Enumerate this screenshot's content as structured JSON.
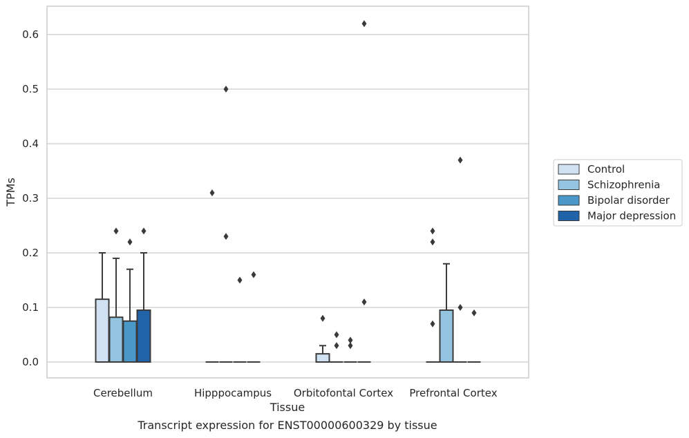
{
  "caption": "Transcript expression for ENST00000600329 by tissue",
  "colors": {
    "grid": "#cccccc",
    "frame": "#cccccc",
    "edge": "#3a3a3a",
    "series": [
      "#d0e1f2",
      "#94c4df",
      "#4a98c9",
      "#2163a8"
    ]
  },
  "chart_data": {
    "type": "box",
    "title": "",
    "xlabel": "Tissue",
    "ylabel": "TPMs",
    "ylim": [
      -0.03,
      0.65
    ],
    "yticks": [
      0.0,
      0.1,
      0.2,
      0.3,
      0.4,
      0.5,
      0.6
    ],
    "ytick_labels": [
      "0.0",
      "0.1",
      "0.2",
      "0.3",
      "0.4",
      "0.5",
      "0.6"
    ],
    "grid": "horizontal",
    "legend_position": "right, outside plot",
    "categories": [
      "Cerebellum",
      "Hipppocampus",
      "Orbitofontal Cortex",
      "Prefrontal Cortex"
    ],
    "series": [
      {
        "name": "Control",
        "boxes": [
          {
            "q1": 0.0,
            "median": 0.0,
            "q3": 0.115,
            "whisker_low": 0.0,
            "whisker_high": 0.2,
            "outliers": []
          },
          {
            "q1": 0.0,
            "median": 0.0,
            "q3": 0.0,
            "whisker_low": 0.0,
            "whisker_high": 0.0,
            "outliers": [
              0.31
            ]
          },
          {
            "q1": 0.0,
            "median": 0.0,
            "q3": 0.015,
            "whisker_low": 0.0,
            "whisker_high": 0.03,
            "outliers": [
              0.08
            ]
          },
          {
            "q1": 0.0,
            "median": 0.0,
            "q3": 0.0,
            "whisker_low": 0.0,
            "whisker_high": 0.0,
            "outliers": [
              0.07,
              0.22,
              0.24
            ]
          }
        ]
      },
      {
        "name": "Schizophrenia",
        "boxes": [
          {
            "q1": 0.0,
            "median": 0.0,
            "q3": 0.082,
            "whisker_low": 0.0,
            "whisker_high": 0.19,
            "outliers": [
              0.24
            ]
          },
          {
            "q1": 0.0,
            "median": 0.0,
            "q3": 0.0,
            "whisker_low": 0.0,
            "whisker_high": 0.0,
            "outliers": [
              0.23,
              0.5
            ]
          },
          {
            "q1": 0.0,
            "median": 0.0,
            "q3": 0.0,
            "whisker_low": 0.0,
            "whisker_high": 0.0,
            "outliers": [
              0.03,
              0.05
            ]
          },
          {
            "q1": 0.0,
            "median": 0.0,
            "q3": 0.095,
            "whisker_low": 0.0,
            "whisker_high": 0.18,
            "outliers": []
          }
        ]
      },
      {
        "name": "Bipolar disorder",
        "boxes": [
          {
            "q1": 0.0,
            "median": 0.0,
            "q3": 0.075,
            "whisker_low": 0.0,
            "whisker_high": 0.17,
            "outliers": [
              0.22
            ]
          },
          {
            "q1": 0.0,
            "median": 0.0,
            "q3": 0.0,
            "whisker_low": 0.0,
            "whisker_high": 0.0,
            "outliers": [
              0.15
            ]
          },
          {
            "q1": 0.0,
            "median": 0.0,
            "q3": 0.0,
            "whisker_low": 0.0,
            "whisker_high": 0.0,
            "outliers": [
              0.03,
              0.04
            ]
          },
          {
            "q1": 0.0,
            "median": 0.0,
            "q3": 0.0,
            "whisker_low": 0.0,
            "whisker_high": 0.0,
            "outliers": [
              0.1,
              0.37
            ]
          }
        ]
      },
      {
        "name": "Major depression",
        "boxes": [
          {
            "q1": 0.0,
            "median": 0.0,
            "q3": 0.095,
            "whisker_low": 0.0,
            "whisker_high": 0.2,
            "outliers": [
              0.24
            ]
          },
          {
            "q1": 0.0,
            "median": 0.0,
            "q3": 0.0,
            "whisker_low": 0.0,
            "whisker_high": 0.0,
            "outliers": [
              0.16
            ]
          },
          {
            "q1": 0.0,
            "median": 0.0,
            "q3": 0.0,
            "whisker_low": 0.0,
            "whisker_high": 0.0,
            "outliers": [
              0.11,
              0.62
            ]
          },
          {
            "q1": 0.0,
            "median": 0.0,
            "q3": 0.0,
            "whisker_low": 0.0,
            "whisker_high": 0.0,
            "outliers": [
              0.09
            ]
          }
        ]
      }
    ]
  }
}
